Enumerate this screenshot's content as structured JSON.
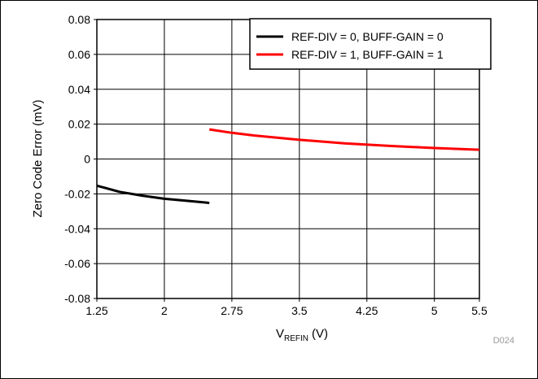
{
  "chart_data": {
    "type": "line",
    "ylabel": "Zero Code Error (mV)",
    "xlabel_main": "V",
    "xlabel_sub": "REFIN",
    "xlabel_unit": "(V)",
    "xlim": [
      1.25,
      5.5
    ],
    "ylim": [
      -0.08,
      0.08
    ],
    "x_ticks": [
      1.25,
      2,
      2.75,
      3.5,
      4.25,
      5,
      5.5
    ],
    "x_tick_labels": [
      "1.25",
      "2",
      "2.75",
      "3.5",
      "4.25",
      "5",
      "5.5"
    ],
    "y_ticks": [
      0.08,
      0.06,
      0.04,
      0.02,
      0,
      -0.02,
      -0.04,
      -0.06,
      -0.08
    ],
    "y_tick_labels": [
      "0.08",
      "0.06",
      "0.04",
      "0.02",
      "0",
      "-0.02",
      "-0.04",
      "-0.06",
      "-0.08"
    ],
    "grid": true,
    "legend_position": "top-right",
    "series": [
      {
        "name": "REF-DIV = 0, BUFF-GAIN = 0",
        "color": "#000000",
        "x": [
          1.25,
          1.5,
          1.75,
          2.0,
          2.25,
          2.5
        ],
        "y": [
          -0.0153,
          -0.0188,
          -0.021,
          -0.0228,
          -0.024,
          -0.0252
        ]
      },
      {
        "name": "REF-DIV = 1, BUFF-GAIN = 1",
        "color": "#ff0000",
        "x": [
          2.5,
          2.75,
          3.0,
          3.5,
          4.0,
          4.5,
          5.0,
          5.5
        ],
        "y": [
          0.017,
          0.015,
          0.0135,
          0.011,
          0.009,
          0.0075,
          0.0063,
          0.0053
        ]
      }
    ]
  },
  "code_label": "D024"
}
